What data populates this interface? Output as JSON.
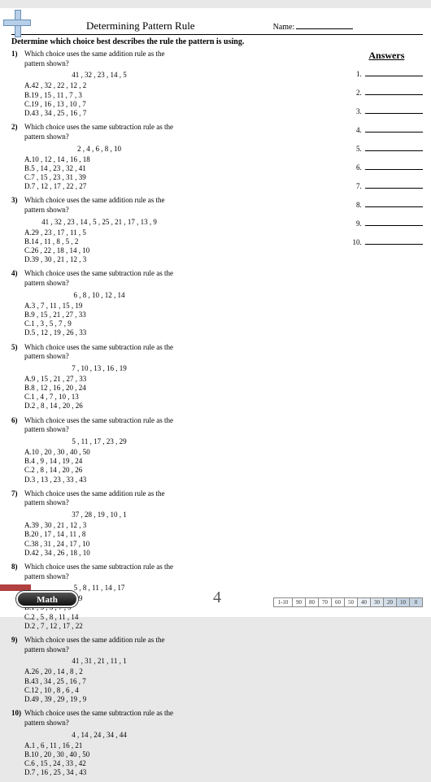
{
  "header": {
    "title": "Determining Pattern Rule",
    "name_label": "Name:"
  },
  "instruction": "Determine which choice best describes the rule the pattern is using.",
  "questions": [
    {
      "num": "1)",
      "text": "Which choice uses the same addition rule as the pattern shown?",
      "seq": "41 , 32 , 23 , 14 , 5",
      "choices": [
        "A.42 , 32 , 22 , 12 , 2",
        "B.19 , 15 , 11 , 7 , 3",
        "C.19 , 16 , 13 , 10 , 7",
        "D.43 , 34 , 25 , 16 , 7"
      ]
    },
    {
      "num": "2)",
      "text": "Which choice uses the same subtraction rule as the pattern shown?",
      "seq": "2 , 4 , 6 , 8 , 10",
      "choices": [
        "A.10 , 12 , 14 , 16 , 18",
        "B.5 , 14 , 23 , 32 , 41",
        "C.7 , 15 , 23 , 31 , 39",
        "D.7 , 12 , 17 , 22 , 27"
      ]
    },
    {
      "num": "3)",
      "text": "Which choice uses the same addition rule as the pattern shown?",
      "seq": "41 , 32 , 23 , 14 , 5 , 25 , 21 , 17 , 13 , 9",
      "choices": [
        "A.29 , 23 , 17 , 11 , 5",
        "B.14 , 11 , 8 , 5 , 2",
        "C.26 , 22 , 18 , 14 , 10",
        "D.39 , 30 , 21 , 12 , 3"
      ]
    },
    {
      "num": "4)",
      "text": "Which choice uses the same subtraction rule as the pattern shown?",
      "seq": "6 , 8 , 10 , 12 , 14",
      "choices": [
        "A.3 , 7 , 11 , 15 , 19",
        "B.9 , 15 , 21 , 27 , 33",
        "C.1 , 3 , 5 , 7 , 9",
        "D.5 , 12 , 19 , 26 , 33"
      ]
    },
    {
      "num": "5)",
      "text": "Which choice uses the same subtraction rule as the pattern shown?",
      "seq": "7 , 10 , 13 , 16 , 19",
      "choices": [
        "A.9 , 15 , 21 , 27 , 33",
        "B.8 , 12 , 16 , 20 , 24",
        "C.1 , 4 , 7 , 10 , 13",
        "D.2 , 8 , 14 , 20 , 26"
      ]
    },
    {
      "num": "6)",
      "text": "Which choice uses the same subtraction rule as the pattern shown?",
      "seq": "5 , 11 , 17 , 23 , 29",
      "choices": [
        "A.10 , 20 , 30 , 40 , 50",
        "B.4 , 9 , 14 , 19 , 24",
        "C.2 , 8 , 14 , 20 , 26",
        "D.3 , 13 , 23 , 33 , 43"
      ]
    },
    {
      "num": "7)",
      "text": "Which choice uses the same addition rule as the pattern shown?",
      "seq": "37 , 28 , 19 , 10 , 1",
      "choices": [
        "A.39 , 30 , 21 , 12 , 3",
        "B.20 , 17 , 14 , 11 , 8",
        "C.38 , 31 , 24 , 17 , 10",
        "D.42 , 34 , 26 , 18 , 10"
      ]
    },
    {
      "num": "8)",
      "text": "Which choice uses the same subtraction rule as the pattern shown?",
      "seq": "5 , 8 , 11 , 14 , 17",
      "choices": [
        "A.3 , 7 , 11 , 15 , 19",
        "B.1 , 3 , 5 , 7 , 9",
        "C.2 , 5 , 8 , 11 , 14",
        "D.2 , 7 , 12 , 17 , 22"
      ]
    },
    {
      "num": "9)",
      "text": "Which choice uses the same addition rule as the pattern shown?",
      "seq": "41 , 31 , 21 , 11 , 1",
      "choices": [
        "A.26 , 20 , 14 , 8 , 2",
        "B.43 , 34 , 25 , 16 , 7",
        "C.12 , 10 , 8 , 6 , 4",
        "D.49 , 39 , 29 , 19 , 9"
      ]
    },
    {
      "num": "10)",
      "text": "Which choice uses the same subtraction rule as the pattern shown?",
      "seq": "4 , 14 , 24 , 34 , 44",
      "choices": [
        "A.1 , 6 , 11 , 16 , 21",
        "B.10 , 20 , 30 , 40 , 50",
        "C.6 , 15 , 24 , 33 , 42",
        "D.7 , 16 , 25 , 34 , 43"
      ]
    }
  ],
  "answers": {
    "title": "Answers",
    "count": 10
  },
  "footer": {
    "badge": "Math",
    "page_number": "4",
    "score": {
      "label": "1-10",
      "cells": [
        {
          "v": "90",
          "sh": ""
        },
        {
          "v": "80",
          "sh": ""
        },
        {
          "v": "70",
          "sh": ""
        },
        {
          "v": "60",
          "sh": ""
        },
        {
          "v": "50",
          "sh": ""
        },
        {
          "v": "40",
          "sh": "shade1"
        },
        {
          "v": "30",
          "sh": "shade2"
        },
        {
          "v": "20",
          "sh": "shade3"
        },
        {
          "v": "10",
          "sh": "shade4"
        },
        {
          "v": "0",
          "sh": "shade4"
        }
      ]
    }
  }
}
